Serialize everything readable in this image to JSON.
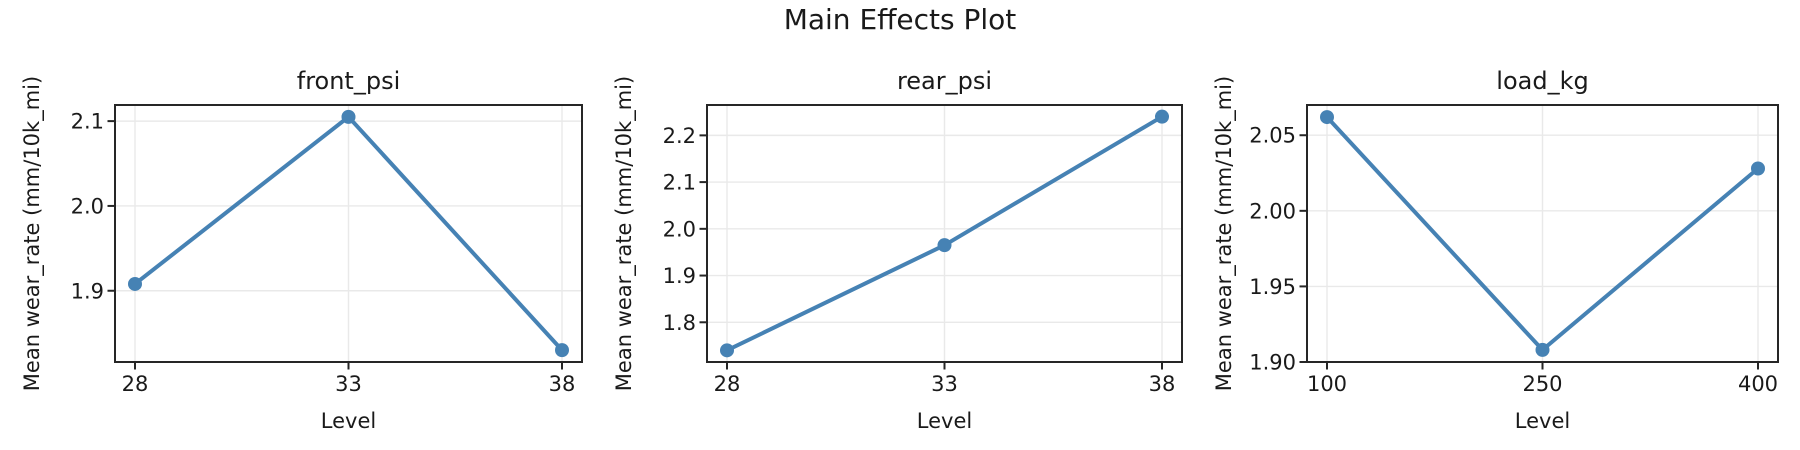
{
  "figure": {
    "title": "Main Effects Plot",
    "background": "#ffffff"
  },
  "style": {
    "line_color": "#4682B4",
    "marker_color": "#4682B4",
    "grid_color": "#e9e9e9",
    "spine_color": "#262626",
    "text_color": "#1a1a1a"
  },
  "chart_data": [
    {
      "type": "line",
      "title": "front_psi",
      "xlabel": "Level",
      "ylabel": "Mean wear_rate (mm/10k_mi)",
      "x": [
        28,
        33,
        38
      ],
      "y": [
        1.908,
        2.105,
        1.83
      ],
      "xtick_labels": [
        "28",
        "33",
        "38"
      ],
      "yticks": [
        1.9,
        2.0,
        2.1
      ],
      "ytick_labels": [
        "1.9",
        "2.0",
        "2.1"
      ],
      "ylim": [
        1.816,
        2.119
      ],
      "grid": true,
      "marker": "circle"
    },
    {
      "type": "line",
      "title": "rear_psi",
      "xlabel": "Level",
      "ylabel": "Mean wear_rate (mm/10k_mi)",
      "x": [
        28,
        33,
        38
      ],
      "y": [
        1.74,
        1.965,
        2.24
      ],
      "xtick_labels": [
        "28",
        "33",
        "38"
      ],
      "yticks": [
        1.8,
        1.9,
        2.0,
        2.1,
        2.2
      ],
      "ytick_labels": [
        "1.8",
        "1.9",
        "2.0",
        "2.1",
        "2.2"
      ],
      "ylim": [
        1.715,
        2.265
      ],
      "grid": true,
      "marker": "circle"
    },
    {
      "type": "line",
      "title": "load_kg",
      "xlabel": "Level",
      "ylabel": "Mean wear_rate (mm/10k_mi)",
      "x": [
        100,
        250,
        400
      ],
      "y": [
        2.062,
        1.908,
        2.028
      ],
      "xtick_labels": [
        "100",
        "250",
        "400"
      ],
      "yticks": [
        1.9,
        1.95,
        2.0,
        2.05
      ],
      "ytick_labels": [
        "1.90",
        "1.95",
        "2.00",
        "2.05"
      ],
      "ylim": [
        1.9,
        2.07
      ],
      "grid": true,
      "marker": "circle"
    }
  ]
}
